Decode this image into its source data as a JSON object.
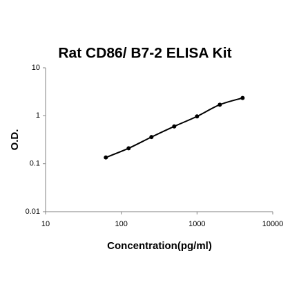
{
  "chart_data": {
    "type": "scatter",
    "title": "Rat CD86/ B7-2 ELISA Kit",
    "x_label": "Concentration(pg/ml)",
    "y_label": "O.D.",
    "x": [
      62.5,
      125,
      250,
      500,
      1000,
      2000,
      4000
    ],
    "values": [
      0.135,
      0.21,
      0.36,
      0.6,
      0.97,
      1.7,
      2.35
    ],
    "color": "#000000",
    "fit_curve": true,
    "xlim": [
      10,
      10000
    ],
    "ylim": [
      0.01,
      10
    ],
    "xticks": [
      10,
      100,
      1000,
      10000
    ],
    "yticks": [
      0.01,
      0.1,
      1,
      10
    ],
    "log_x": true,
    "log_y": true
  }
}
